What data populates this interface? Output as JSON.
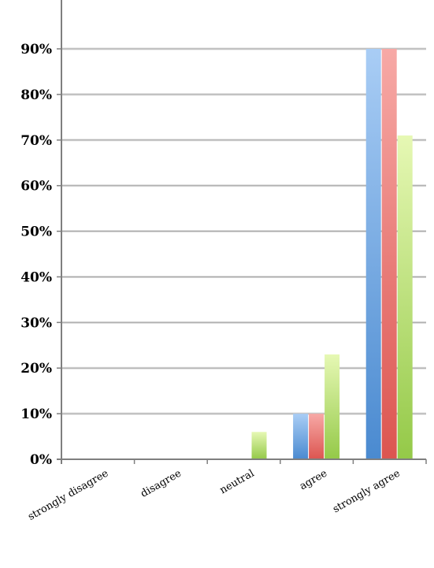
{
  "chart_data": {
    "type": "bar",
    "title": "",
    "xlabel": "",
    "ylabel": "",
    "categories": [
      "strongly disagree",
      "disagree",
      "neutral",
      "agree",
      "strongly agree"
    ],
    "series": [
      {
        "values": [
          0,
          0,
          0,
          10,
          90
        ],
        "color": "#5b9bd5"
      },
      {
        "values": [
          0,
          0,
          0,
          10,
          90
        ],
        "color": "#e46c6c"
      },
      {
        "values": [
          0,
          0,
          6,
          23,
          71
        ],
        "color": "#9bcf53"
      }
    ],
    "ylim": [
      0,
      90
    ],
    "yticks": [
      0,
      10,
      20,
      30,
      40,
      50,
      60,
      70,
      80,
      90
    ],
    "ytick_labels": [
      "0%",
      "10%",
      "20%",
      "30%",
      "40%",
      "50%",
      "60%",
      "70%",
      "80%",
      "90%"
    ],
    "grid": true,
    "legend": "none"
  }
}
